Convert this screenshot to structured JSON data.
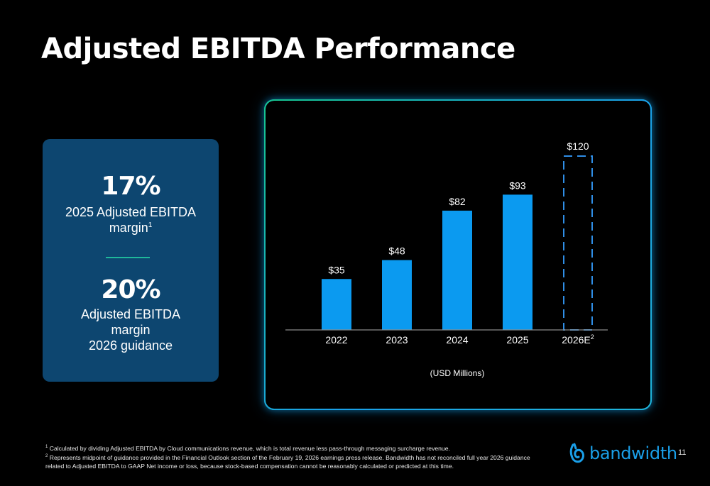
{
  "title": "Adjusted EBITDA Performance",
  "kpi_card": {
    "kpi1_value": "17%",
    "kpi1_label_line1": "2025 Adjusted EBITDA",
    "kpi1_label_line2": "margin",
    "kpi1_label_sup": "1",
    "kpi2_value": "20%",
    "kpi2_label_line1": "Adjusted EBITDA",
    "kpi2_label_line2": "margin",
    "kpi2_label_line3": "2026 guidance"
  },
  "chart_data": {
    "type": "bar",
    "categories": [
      "2022",
      "2023",
      "2024",
      "2025",
      "2026E"
    ],
    "category_superscripts": [
      "",
      "",
      "",
      "",
      "2"
    ],
    "values": [
      35,
      48,
      82,
      93,
      120
    ],
    "value_labels": [
      "$35",
      "$48",
      "$82",
      "$93",
      "$120"
    ],
    "estimated": [
      false,
      false,
      false,
      false,
      true
    ],
    "unit_label": "(USD Millions)",
    "ylim": [
      0,
      120
    ],
    "grid": false,
    "colors": {
      "bar": "#0b9af0",
      "estimate_outline": "#2f8ee6",
      "axis": "#8a8a8a"
    }
  },
  "footnotes": [
    {
      "marker": "1",
      "text": "Calculated by dividing Adjusted EBITDA by Cloud communications revenue, which is total revenue less pass-through messaging surcharge revenue."
    },
    {
      "marker": "2",
      "text": "Represents midpoint of guidance provided in the Financial Outlook section of the February 19, 2026 earnings press release. Bandwidth has not reconciled full year 2026 guidance related to Adjusted EBITDA to GAAP Net income or loss, because stock-based compensation cannot be reasonably calculated or predicted at this time."
    }
  ],
  "logo": {
    "text": "bandwidth",
    "icon": "bandwidth-logo-icon"
  },
  "page_number": "11"
}
